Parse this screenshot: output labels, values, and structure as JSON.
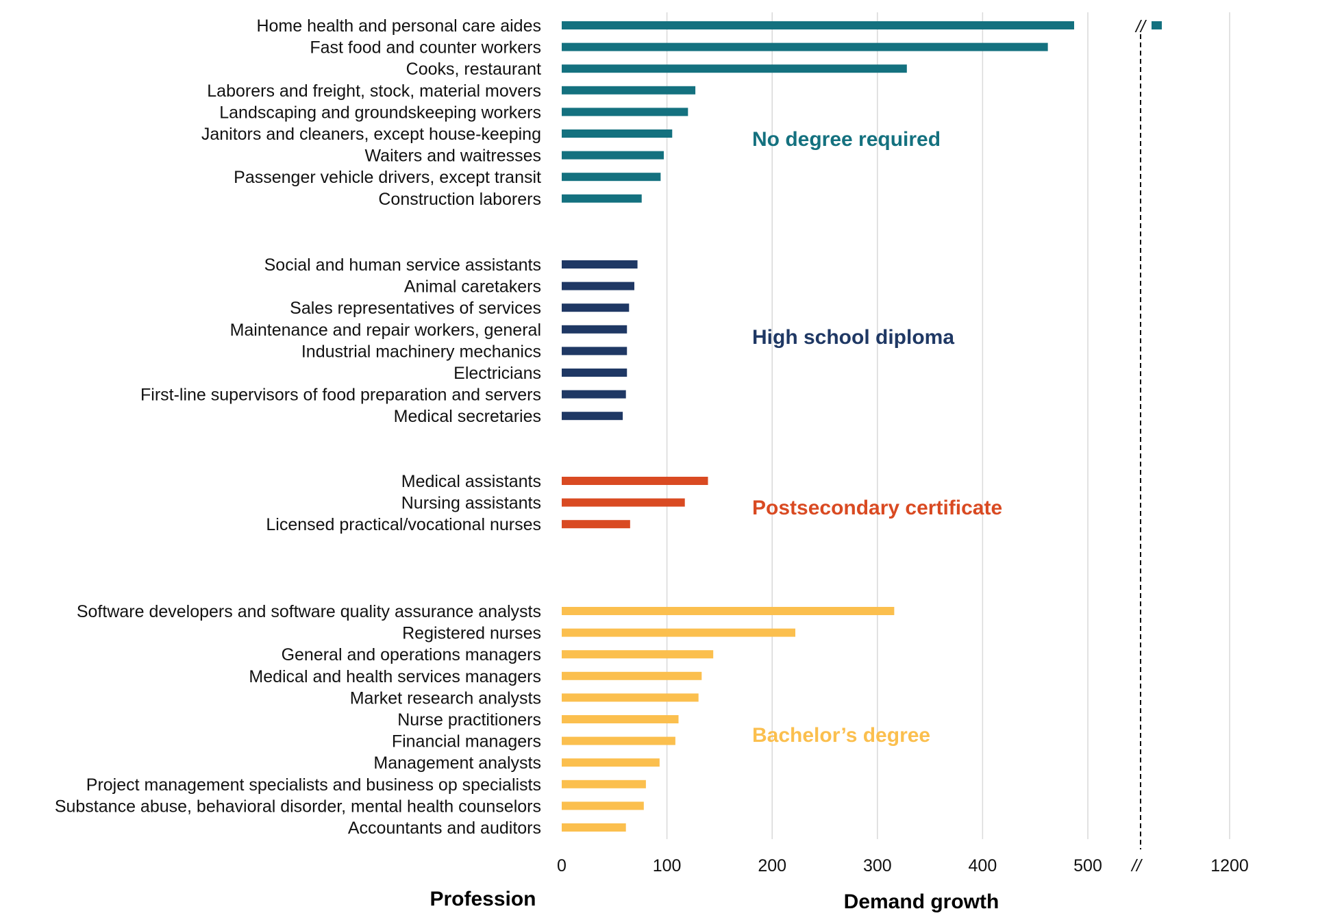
{
  "chart_data": {
    "type": "bar",
    "orientation": "horizontal",
    "xlabel": "Demand growth",
    "ylabel": "Profession",
    "xlim": [
      0,
      1200
    ],
    "axis_break": {
      "before": 500,
      "after": 1200,
      "marker": "//"
    },
    "x_ticks": [
      "0",
      "100",
      "200",
      "300",
      "400",
      "500",
      "1200"
    ],
    "groups": [
      {
        "name": "No degree required",
        "color": "#14717f",
        "categories": [
          "Home health and personal care aides",
          "Fast food and counter workers",
          "Cooks, restaurant",
          "Laborers and freight, stock, material movers",
          "Landscaping and groundskeeping workers",
          "Janitors and cleaners, except house-keeping",
          "Waiters and waitresses",
          "Passenger vehicle drivers, except transit",
          "Construction laborers"
        ],
        "values": [
          1130,
          462,
          328,
          127,
          120,
          105,
          97,
          94,
          76
        ]
      },
      {
        "name": "High school diploma",
        "color": "#1f3864",
        "categories": [
          "Social and human service assistants",
          "Animal caretakers",
          "Sales representatives of services",
          "Maintenance and repair workers, general",
          "Industrial machinery mechanics",
          "Electricians",
          "First-line supervisors of food preparation and servers",
          "Medical secretaries"
        ],
        "values": [
          72,
          69,
          64,
          62,
          62,
          62,
          61,
          58
        ]
      },
      {
        "name": "Postsecondary certificate",
        "color": "#d94a22",
        "categories": [
          "Medical assistants",
          "Nursing assistants",
          "Licensed practical/vocational nurses"
        ],
        "values": [
          139,
          117,
          65
        ]
      },
      {
        "name": "Bachelor’s degree",
        "color": "#fbbf4e",
        "categories": [
          "Software developers and software quality assurance analysts",
          "Registered nurses",
          "General and operations managers",
          "Medical and health services managers",
          "Market research analysts",
          "Nurse practitioners",
          "Financial managers",
          "Management analysts",
          "Project management specialists and business op specialists",
          "Substance abuse, behavioral disorder, mental health counselors",
          "Accountants and auditors"
        ],
        "values": [
          316,
          222,
          144,
          133,
          130,
          111,
          108,
          93,
          80,
          78,
          61
        ]
      }
    ]
  }
}
